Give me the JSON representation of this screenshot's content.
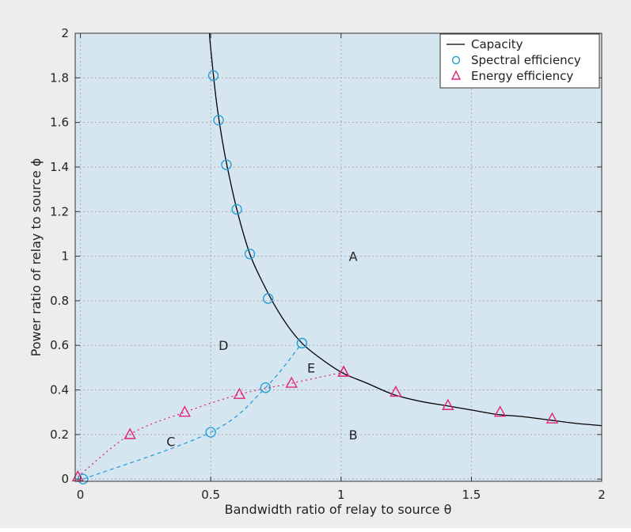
{
  "chart_data": {
    "type": "line",
    "xlabel": "Bandwidth ratio of relay to source θ",
    "ylabel": "Power ratio of relay to source ϕ",
    "xlim": [
      -0.02,
      2
    ],
    "ylim": [
      -0.01,
      2
    ],
    "xticks": [
      0,
      0.5,
      1,
      1.5,
      2
    ],
    "xtick_labels": [
      "0",
      "0.5",
      "1",
      "1.5",
      "2"
    ],
    "yticks": [
      0,
      0.2,
      0.4,
      0.6,
      0.8,
      1,
      1.2,
      1.4,
      1.6,
      1.8,
      2
    ],
    "ytick_labels": [
      "0",
      "0.2",
      "0.4",
      "0.6",
      "0.8",
      "1",
      "1.2",
      "1.4",
      "1.6",
      "1.8",
      "2"
    ],
    "grid": true,
    "legend_position": "top-right",
    "colors": {
      "plot_bg": "#d6e6f0",
      "outer_bg": "#ededed",
      "capacity": "#000000",
      "spectral": "#2a9fd6",
      "energy": "#e0247a",
      "grid": "#a9a9a9"
    },
    "series": [
      {
        "name": "Capacity",
        "style": "solid-line",
        "x": [
          0.495,
          0.5,
          0.52,
          0.54,
          0.56,
          0.6,
          0.65,
          0.7,
          0.75,
          0.8,
          0.85,
          0.9,
          1.0,
          1.1,
          1.2,
          1.3,
          1.4,
          1.5,
          1.6,
          1.7,
          1.8,
          1.9,
          2.0
        ],
        "y": [
          2.0,
          1.93,
          1.71,
          1.55,
          1.42,
          1.21,
          1.01,
          0.88,
          0.77,
          0.68,
          0.61,
          0.56,
          0.48,
          0.43,
          0.38,
          0.35,
          0.33,
          0.31,
          0.29,
          0.28,
          0.265,
          0.25,
          0.24
        ]
      },
      {
        "name": "Spectral efficiency",
        "marker": "circle",
        "x": [
          0.51,
          0.53,
          0.56,
          0.6,
          0.65,
          0.72,
          0.85
        ],
        "y": [
          1.81,
          1.61,
          1.41,
          1.21,
          1.01,
          0.81,
          0.61
        ]
      },
      {
        "name": "Energy efficiency",
        "marker": "triangle",
        "x": [
          1.01,
          1.21,
          1.41,
          1.61,
          1.81
        ],
        "y": [
          0.48,
          0.39,
          0.33,
          0.3,
          0.27
        ]
      }
    ],
    "extra_curves": [
      {
        "style": "dashed",
        "color": "#2a9fd6",
        "marker": "circle",
        "x": [
          0.01,
          0.5,
          0.71,
          0.85
        ],
        "y": [
          0.0,
          0.21,
          0.41,
          0.61
        ]
      },
      {
        "style": "dotted",
        "color": "#e0247a",
        "marker": "triangle",
        "x": [
          -0.01,
          0.19,
          0.4,
          0.61,
          0.81,
          1.01
        ],
        "y": [
          0.01,
          0.2,
          0.3,
          0.38,
          0.43,
          0.48
        ]
      }
    ],
    "region_labels": [
      {
        "text": "A",
        "x": 1.03,
        "y": 1.0
      },
      {
        "text": "B",
        "x": 1.03,
        "y": 0.2
      },
      {
        "text": "C",
        "x": 0.33,
        "y": 0.17
      },
      {
        "text": "D",
        "x": 0.53,
        "y": 0.6
      },
      {
        "text": "E",
        "x": 0.87,
        "y": 0.5
      }
    ]
  }
}
